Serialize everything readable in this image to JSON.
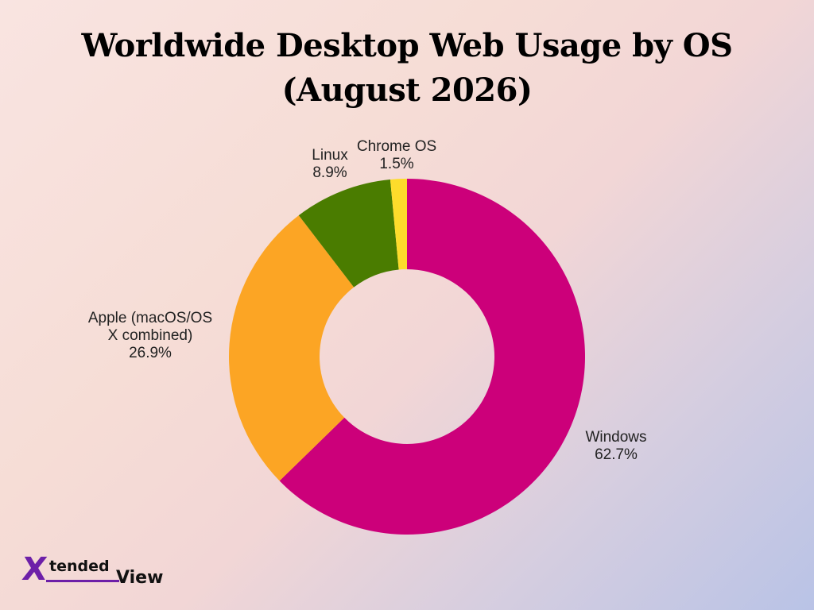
{
  "title_line1": "Worldwide Desktop Web Usage by OS",
  "title_line2": "(August 2026)",
  "chart_data": {
    "type": "pie",
    "donut": true,
    "title": "Worldwide Desktop Web Usage by OS (August 2026)",
    "categories": [
      "Windows",
      "Apple (macOS/OS X combined)",
      "Linux",
      "Chrome OS"
    ],
    "values": [
      62.7,
      26.9,
      8.9,
      1.5
    ],
    "display_values": [
      "62.7%",
      "26.9%",
      "8.9%",
      "1.5%"
    ],
    "label_lines": [
      [
        "Windows"
      ],
      [
        "Apple (macOS/OS",
        "X combined)"
      ],
      [
        "Linux"
      ],
      [
        "Chrome OS"
      ]
    ],
    "colors": [
      "#cc007a",
      "#fca524",
      "#4a7c00",
      "#fddc2b"
    ]
  },
  "logo": {
    "mark": "X",
    "text_top": "tended",
    "text_bottom": "View",
    "mark_color": "#6d1fa8"
  }
}
